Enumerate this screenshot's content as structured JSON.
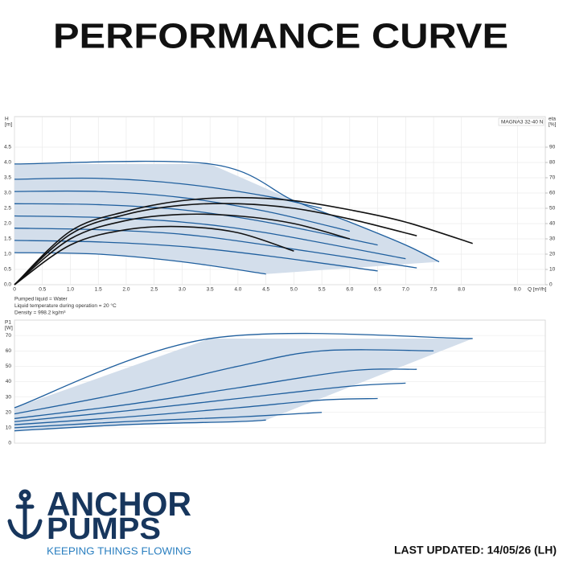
{
  "header": {
    "title": "PERFORMANCE CURVE"
  },
  "chart_data": [
    {
      "type": "line",
      "model": "MAGNA3 32-40 N",
      "ylabel": [
        "H",
        "[m]"
      ],
      "y2label": [
        "eta",
        "[%]"
      ],
      "xlabel": "Q [m³/h]",
      "notes": [
        "Pumped liquid = Water",
        "Liquid temperature during operation = 20 °C",
        "Density = 998.2 kg/m³"
      ],
      "xlim": [
        0,
        9.5
      ],
      "xticks": [
        0,
        0.5,
        {
          "value": 1,
          "label": "1.0"
        },
        1.5,
        {
          "value": 2,
          "label": "2.0"
        },
        2.5,
        {
          "value": 3,
          "label": "3.0"
        },
        3.5,
        {
          "value": 4,
          "label": "4.0"
        },
        4.5,
        {
          "value": 5,
          "label": "5.0"
        },
        5.5,
        {
          "value": 6,
          "label": "6.0"
        },
        6.5,
        {
          "value": 7,
          "label": "7.0"
        },
        7.5,
        {
          "value": 8,
          "label": "8.0"
        },
        {
          "value": 9,
          "label": "9.0"
        }
      ],
      "ylim": [
        0,
        5.5
      ],
      "yticks": [
        {
          "value": 0,
          "label": "0.0"
        },
        0.5,
        {
          "value": 1,
          "label": "1.0"
        },
        1.5,
        {
          "value": 2,
          "label": "2.0"
        },
        2.5,
        {
          "value": 3,
          "label": "3.0"
        },
        3.5,
        {
          "value": 4,
          "label": "4.0"
        },
        4.5
      ],
      "y2lim": [
        0,
        110
      ],
      "y2ticks": [
        0,
        10,
        20,
        30,
        40,
        50,
        60,
        70,
        80,
        90
      ],
      "grid": true,
      "fill_color": "#d3deeb",
      "series": [
        {
          "color": "#1f5f9e",
          "x": [
            0,
            3.5,
            5,
            6,
            7,
            7.6
          ],
          "values": [
            3.95,
            3.95,
            2.75,
            2.05,
            1.3,
            0.75
          ]
        },
        {
          "color": "#1f5f9e",
          "x": [
            0,
            1.5,
            3,
            4.5,
            5.5
          ],
          "values": [
            3.45,
            3.48,
            3.3,
            2.9,
            2.5
          ]
        },
        {
          "color": "#1f5f9e",
          "x": [
            0,
            1.5,
            3,
            4.5,
            6
          ],
          "values": [
            3.05,
            3.05,
            2.85,
            2.4,
            1.75
          ]
        },
        {
          "color": "#1f5f9e",
          "x": [
            0,
            1.5,
            3,
            4.5,
            6.5
          ],
          "values": [
            2.65,
            2.62,
            2.45,
            2.05,
            1.3
          ]
        },
        {
          "color": "#1f5f9e",
          "x": [
            0,
            1.5,
            3,
            4.5,
            7
          ],
          "values": [
            2.25,
            2.2,
            2.05,
            1.7,
            0.85
          ]
        },
        {
          "color": "#1f5f9e",
          "x": [
            0,
            1.5,
            3,
            4.5,
            7.2
          ],
          "values": [
            1.85,
            1.8,
            1.65,
            1.3,
            0.55
          ]
        },
        {
          "color": "#1f5f9e",
          "x": [
            0,
            1.5,
            3,
            4.5,
            6.5
          ],
          "values": [
            1.45,
            1.4,
            1.25,
            0.95,
            0.45
          ]
        },
        {
          "color": "#1f5f9e",
          "x": [
            0,
            1.5,
            3,
            4.5
          ],
          "values": [
            1.05,
            1.0,
            0.75,
            0.35
          ]
        },
        {
          "color": "#111111",
          "axis": "y2",
          "x": [
            0,
            1,
            2,
            3,
            4,
            5,
            6,
            7,
            8.2
          ],
          "values": [
            0,
            35,
            48,
            55,
            57,
            55,
            49,
            41,
            27
          ]
        },
        {
          "color": "#111111",
          "axis": "y2",
          "x": [
            0,
            1,
            2,
            3,
            4,
            5,
            6,
            7.2
          ],
          "values": [
            0,
            33,
            46,
            52,
            53,
            50,
            43,
            32
          ]
        },
        {
          "color": "#111111",
          "axis": "y2",
          "x": [
            0,
            1,
            2,
            3,
            4,
            5,
            6
          ],
          "values": [
            0,
            30,
            42,
            46,
            45,
            40,
            30
          ]
        },
        {
          "color": "#111111",
          "axis": "y2",
          "x": [
            0,
            1,
            2,
            3,
            4,
            5
          ],
          "values": [
            0,
            26,
            36,
            38,
            34,
            22
          ]
        }
      ]
    },
    {
      "type": "line",
      "ylabel": [
        "P1",
        "[W]"
      ],
      "xlim": [
        0,
        9.5
      ],
      "ylim": [
        0,
        80
      ],
      "yticks": [
        0,
        10,
        20,
        30,
        40,
        50,
        60,
        70
      ],
      "grid": true,
      "fill_color": "#d3deeb",
      "series": [
        {
          "color": "#1f5f9e",
          "x": [
            0,
            3.5,
            8.2
          ],
          "values": [
            23,
            68,
            68
          ]
        },
        {
          "color": "#1f5f9e",
          "x": [
            0,
            2,
            4,
            5.5,
            7.5
          ],
          "values": [
            19,
            33,
            50,
            60,
            60
          ]
        },
        {
          "color": "#1f5f9e",
          "x": [
            0,
            2,
            4,
            6,
            7.2
          ],
          "values": [
            16,
            25,
            36,
            47,
            48
          ]
        },
        {
          "color": "#1f5f9e",
          "x": [
            0,
            2,
            4,
            6,
            7
          ],
          "values": [
            14,
            21,
            29,
            37,
            39
          ]
        },
        {
          "color": "#1f5f9e",
          "x": [
            0,
            2,
            4,
            5.5,
            6.5
          ],
          "values": [
            12,
            17,
            23,
            28,
            29
          ]
        },
        {
          "color": "#1f5f9e",
          "x": [
            0,
            2,
            4,
            5.5
          ],
          "values": [
            10,
            14,
            17,
            20
          ]
        },
        {
          "color": "#1f5f9e",
          "x": [
            0,
            2,
            4,
            4.5
          ],
          "values": [
            8,
            12,
            14,
            15
          ]
        }
      ]
    }
  ],
  "logo": {
    "line1": "ANCHOR",
    "line2": "PUMPS",
    "tagline": "KEEPING THINGS FLOWING"
  },
  "footer": {
    "updated": "LAST UPDATED: 14/05/26 (LH)"
  }
}
